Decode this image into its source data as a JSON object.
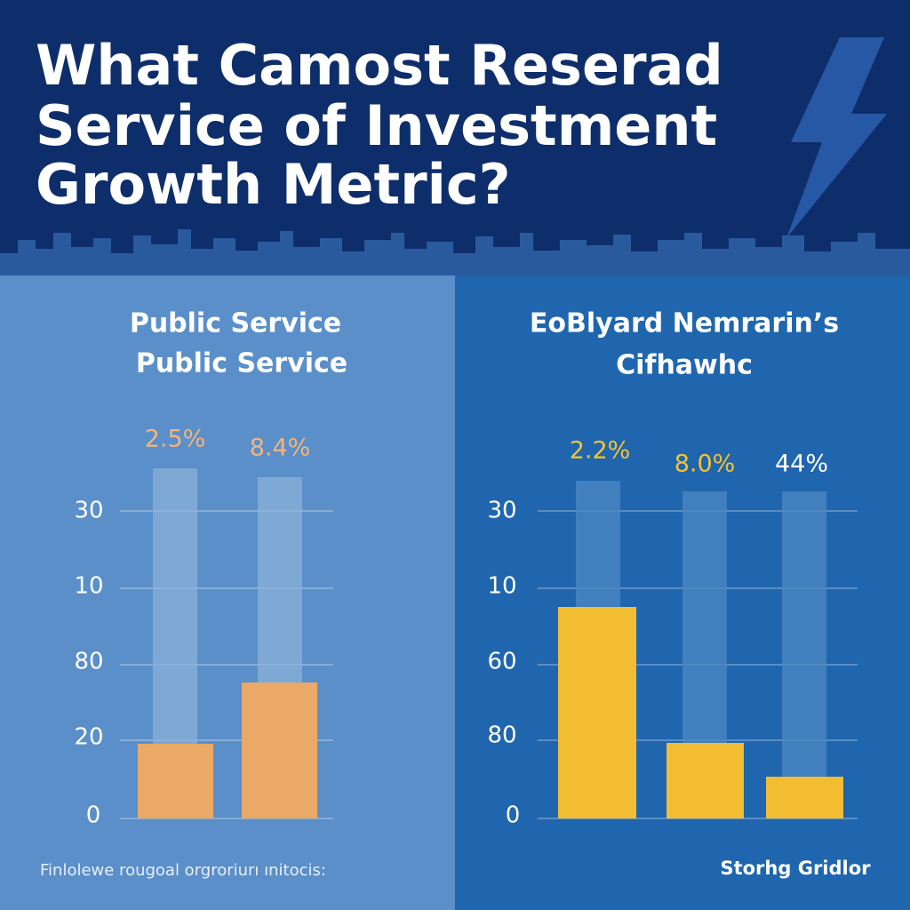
{
  "header": {
    "title_lines": [
      "What Camost Reserad",
      "Service of Investment",
      "Growth Metric?"
    ]
  },
  "panels": [
    {
      "title_lines": [
        "Public Service",
        "Public Service"
      ],
      "axis_labels": [
        "30",
        "10",
        "80",
        "20",
        "0"
      ],
      "bar_labels": [
        "2.5%",
        "8.4%"
      ]
    },
    {
      "title_lines": [
        "EoBlyard Nemrarin’s",
        "Cifhawhc"
      ],
      "axis_labels": [
        "30",
        "10",
        "60",
        "80",
        "0"
      ],
      "bar_labels": [
        "2.2%",
        "8.0%",
        "44%"
      ]
    }
  ],
  "footer": {
    "left": "Finlolewe rougoal orgroriurı ınitocis:",
    "right": "Storhg Gridlor"
  }
}
